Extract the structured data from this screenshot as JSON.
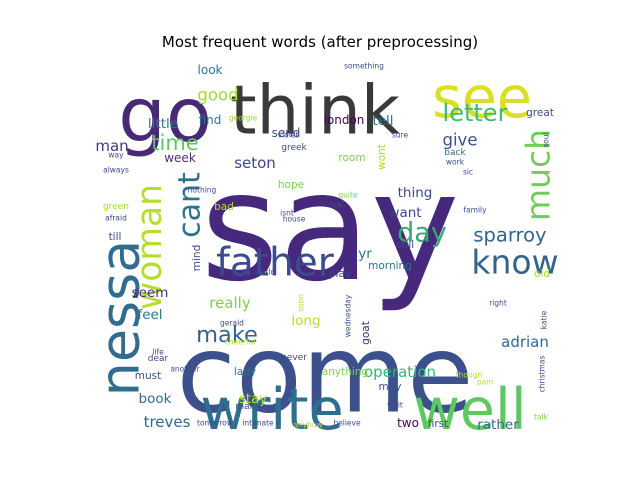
{
  "chart_data": {
    "type": "wordcloud",
    "title": "Most frequent words (after preprocessing)",
    "colormap": "viridis",
    "background": "#ffffff",
    "words": [
      {
        "text": "say",
        "weight": 100,
        "color": "#46287c",
        "vertical": false
      },
      {
        "text": "come",
        "weight": 72,
        "color": "#3c508b",
        "vertical": false
      },
      {
        "text": "go",
        "weight": 50,
        "color": "#482a74",
        "vertical": false
      },
      {
        "text": "think",
        "weight": 45,
        "color": "#3a3a3a",
        "vertical": false
      },
      {
        "text": "see",
        "weight": 38,
        "color": "#d9e021",
        "vertical": false
      },
      {
        "text": "write",
        "weight": 38,
        "color": "#2e6e8e",
        "vertical": false
      },
      {
        "text": "well",
        "weight": 38,
        "color": "#5ec962",
        "vertical": false
      },
      {
        "text": "nessa",
        "weight": 36,
        "color": "#2f6c8e",
        "vertical": true
      },
      {
        "text": "father",
        "weight": 26,
        "color": "#3b4b8c",
        "vertical": false
      },
      {
        "text": "woman",
        "weight": 23,
        "color": "#b5de2b",
        "vertical": true
      },
      {
        "text": "much",
        "weight": 22,
        "color": "#6ece58",
        "vertical": true
      },
      {
        "text": "know",
        "weight": 22,
        "color": "#33638d",
        "vertical": false
      },
      {
        "text": "cant",
        "weight": 20,
        "color": "#2c718e",
        "vertical": true
      },
      {
        "text": "day",
        "weight": 18,
        "color": "#3aa875",
        "vertical": false
      },
      {
        "text": "letter",
        "weight": 16,
        "color": "#3fbc73",
        "vertical": false
      },
      {
        "text": "make",
        "weight": 15,
        "color": "#33638d",
        "vertical": false
      },
      {
        "text": "time",
        "weight": 14,
        "color": "#5cc863",
        "vertical": false
      },
      {
        "text": "sparroy",
        "weight": 13,
        "color": "#33638d",
        "vertical": false
      },
      {
        "text": "give",
        "weight": 11,
        "color": "#3b528b",
        "vertical": false
      },
      {
        "text": "good",
        "weight": 11,
        "color": "#a2da37",
        "vertical": false
      },
      {
        "text": "adrian",
        "weight": 10,
        "color": "#31688e",
        "vertical": false
      },
      {
        "text": "operation",
        "weight": 10,
        "color": "#35b779",
        "vertical": false
      },
      {
        "text": "really",
        "weight": 10,
        "color": "#7ad151",
        "vertical": false
      },
      {
        "text": "seton",
        "weight": 10,
        "color": "#414487",
        "vertical": false
      },
      {
        "text": "treves",
        "weight": 10,
        "color": "#31688e",
        "vertical": false
      },
      {
        "text": "man",
        "weight": 10,
        "color": "#443983",
        "vertical": false
      },
      {
        "text": "want",
        "weight": 9,
        "color": "#414487",
        "vertical": false
      },
      {
        "text": "thing",
        "weight": 9,
        "color": "#3e4989",
        "vertical": false
      },
      {
        "text": "book",
        "weight": 9,
        "color": "#31688e",
        "vertical": false
      },
      {
        "text": "yr",
        "weight": 9,
        "color": "#2c728e",
        "vertical": false
      },
      {
        "text": "rather",
        "weight": 9,
        "color": "#31688e",
        "vertical": false
      },
      {
        "text": "stay",
        "weight": 9,
        "color": "#b5de2b",
        "vertical": false
      },
      {
        "text": "seem",
        "weight": 9,
        "color": "#472d7b",
        "vertical": false
      },
      {
        "text": "feel",
        "weight": 9,
        "color": "#2a788e",
        "vertical": false
      },
      {
        "text": "long",
        "weight": 9,
        "color": "#b5de2b",
        "vertical": false
      },
      {
        "text": "tell",
        "weight": 9,
        "color": "#2d708e",
        "vertical": false
      },
      {
        "text": "little",
        "weight": 9,
        "color": "#2a788e",
        "vertical": false
      },
      {
        "text": "send",
        "weight": 8,
        "color": "#3e4a89",
        "vertical": false
      },
      {
        "text": "london",
        "weight": 8,
        "color": "#440154",
        "vertical": false
      },
      {
        "text": "look",
        "weight": 8,
        "color": "#2a788e",
        "vertical": false
      },
      {
        "text": "week",
        "weight": 8,
        "color": "#472f7d",
        "vertical": false
      },
      {
        "text": "find",
        "weight": 8,
        "color": "#2a788e",
        "vertical": false
      },
      {
        "text": "two",
        "weight": 8,
        "color": "#440154",
        "vertical": false
      },
      {
        "text": "may",
        "weight": 7,
        "color": "#3b528b",
        "vertical": false
      },
      {
        "text": "lady",
        "weight": 7,
        "color": "#2c728e",
        "vertical": false
      },
      {
        "text": "must",
        "weight": 7,
        "color": "#3b528b",
        "vertical": false
      },
      {
        "text": "morning",
        "weight": 7,
        "color": "#2c728e",
        "vertical": false
      },
      {
        "text": "mind",
        "weight": 7,
        "color": "#3e4a89",
        "vertical": true
      },
      {
        "text": "bad",
        "weight": 7,
        "color": "#b5de2b",
        "vertical": false
      },
      {
        "text": "hope",
        "weight": 7,
        "color": "#7ad151",
        "vertical": false
      },
      {
        "text": "room",
        "weight": 7,
        "color": "#7ad151",
        "vertical": false
      },
      {
        "text": "first",
        "weight": 7,
        "color": "#3b528b",
        "vertical": false
      },
      {
        "text": "anything",
        "weight": 7,
        "color": "#7ad151",
        "vertical": false
      },
      {
        "text": "goat",
        "weight": 7,
        "color": "#482878",
        "vertical": true
      },
      {
        "text": "wont",
        "weight": 7,
        "color": "#a2da37",
        "vertical": true
      },
      {
        "text": "play",
        "weight": 7,
        "color": "#3e4a89",
        "vertical": false
      },
      {
        "text": "still",
        "weight": 7,
        "color": "#3e4a89",
        "vertical": false
      },
      {
        "text": "old",
        "weight": 7,
        "color": "#a2da37",
        "vertical": false
      },
      {
        "text": "till",
        "weight": 7,
        "color": "#3e4a89",
        "vertical": false
      },
      {
        "text": "great",
        "weight": 7,
        "color": "#3e4a89",
        "vertical": false
      },
      {
        "text": "greek",
        "weight": 6,
        "color": "#3e4a89",
        "vertical": false
      },
      {
        "text": "never",
        "weight": 6,
        "color": "#3e4a89",
        "vertical": false
      },
      {
        "text": "back",
        "weight": 6,
        "color": "#31688e",
        "vertical": false
      },
      {
        "text": "green",
        "weight": 6,
        "color": "#a2da37",
        "vertical": false
      },
      {
        "text": "many",
        "weight": 6,
        "color": "#3e4a89",
        "vertical": false
      },
      {
        "text": "dear",
        "weight": 6,
        "color": "#3e4a89",
        "vertical": false
      },
      {
        "text": "wait",
        "weight": 5,
        "color": "#3e4a89",
        "vertical": false
      },
      {
        "text": "tomorrow",
        "weight": 5,
        "color": "#3e4a89",
        "vertical": false
      },
      {
        "text": "intimate",
        "weight": 5,
        "color": "#3e4a89",
        "vertical": false
      },
      {
        "text": "sure",
        "weight": 5,
        "color": "#3e4a89",
        "vertical": false
      },
      {
        "text": "something",
        "weight": 5,
        "color": "#3e4a89",
        "vertical": false
      },
      {
        "text": "georgie",
        "weight": 5,
        "color": "#a2da37",
        "vertical": false
      },
      {
        "text": "violet",
        "weight": 5,
        "color": "#3e4a89",
        "vertical": false
      },
      {
        "text": "way",
        "weight": 5,
        "color": "#3e4a89",
        "vertical": false
      },
      {
        "text": "always",
        "weight": 5,
        "color": "#3e4a89",
        "vertical": false
      },
      {
        "text": "afraid",
        "weight": 5,
        "color": "#3e4a89",
        "vertical": false
      },
      {
        "text": "nothing",
        "weight": 5,
        "color": "#3e4a89",
        "vertical": false
      },
      {
        "text": "quite",
        "weight": 5,
        "color": "#7ad151",
        "vertical": false
      },
      {
        "text": "real",
        "weight": 5,
        "color": "#3e4a89",
        "vertical": false
      },
      {
        "text": "isnt",
        "weight": 5,
        "color": "#3e4a89",
        "vertical": false
      },
      {
        "text": "house",
        "weight": 5,
        "color": "#3e4a89",
        "vertical": false
      },
      {
        "text": "world",
        "weight": 5,
        "color": "#3e4a89",
        "vertical": false
      },
      {
        "text": "soon",
        "weight": 5,
        "color": "#b5de2b",
        "vertical": true
      },
      {
        "text": "wednesday",
        "weight": 5,
        "color": "#3e4a89",
        "vertical": true
      },
      {
        "text": "gerald",
        "weight": 5,
        "color": "#3e4a89",
        "vertical": false
      },
      {
        "text": "cheerful",
        "weight": 5,
        "color": "#b5de2b",
        "vertical": false
      },
      {
        "text": "life",
        "weight": 5,
        "color": "#3e4a89",
        "vertical": false
      },
      {
        "text": "another",
        "weight": 5,
        "color": "#3e4a89",
        "vertical": false
      },
      {
        "text": "though",
        "weight": 5,
        "color": "#b5de2b",
        "vertical": false
      },
      {
        "text": "pain",
        "weight": 5,
        "color": "#b5de2b",
        "vertical": false
      },
      {
        "text": "anyhow",
        "weight": 5,
        "color": "#b5de2b",
        "vertical": false
      },
      {
        "text": "believe",
        "weight": 5,
        "color": "#3e4a89",
        "vertical": false
      },
      {
        "text": "talk",
        "weight": 5,
        "color": "#7ad151",
        "vertical": false
      },
      {
        "text": "christmas",
        "weight": 5,
        "color": "#3e4a89",
        "vertical": true
      },
      {
        "text": "katie",
        "weight": 5,
        "color": "#3e4a89",
        "vertical": true
      },
      {
        "text": "right",
        "weight": 5,
        "color": "#3e4a89",
        "vertical": false
      },
      {
        "text": "sic",
        "weight": 5,
        "color": "#3e4a89",
        "vertical": false
      },
      {
        "text": "family",
        "weight": 5,
        "color": "#3e4a89",
        "vertical": false
      },
      {
        "text": "soul",
        "weight": 5,
        "color": "#3e4a89",
        "vertical": true
      },
      {
        "text": "work",
        "weight": 5,
        "color": "#3e4a89",
        "vertical": false
      }
    ]
  }
}
